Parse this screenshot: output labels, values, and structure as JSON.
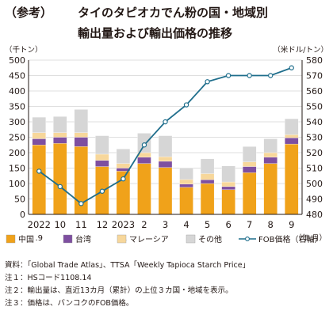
{
  "title": {
    "tag": "（参考）",
    "line1": "タイのタピオカでん粉の国・地域別",
    "line2": "輸出量および輸出価格の推移"
  },
  "notes": [
    "資料：「Global Trade Atlas」、TTSA「Weekly Tapioca Starch Price」",
    "注１：HSコード1108.14",
    "注２：輸出量は、直近13カ月（累計）の上位３カ国・地域を表示。",
    "注３：価格は、バンコクのFOB価格。"
  ],
  "colors": {
    "china": "#f0a21a",
    "taiwan": "#7e4fa0",
    "malaysia": "#f7d79b",
    "other": "#d6d6d6",
    "fob_line": "#1f6e8c",
    "axis": "#231815",
    "grid": "#bfbfbf"
  },
  "chart_data": {
    "type": "bar",
    "stacked": true,
    "y_left_unit": "（千トン）",
    "y_right_unit": "（米ドル/トン）",
    "x_unit": "（年.月）",
    "ylim": [
      0,
      500
    ],
    "y_ticks": [
      0,
      50,
      100,
      150,
      200,
      250,
      300,
      350,
      400,
      450,
      500
    ],
    "y2lim": [
      480,
      580
    ],
    "y2_ticks": [
      480,
      490,
      500,
      510,
      520,
      530,
      540,
      550,
      560,
      570,
      580
    ],
    "grid": true,
    "legend_position": "bottom",
    "categories": [
      "2022.9",
      "10",
      "11",
      "12",
      "2023.1",
      "2",
      "3",
      "4",
      "5",
      "6",
      "7",
      "8",
      "9"
    ],
    "category_labels": [
      [
        "2022",
        ".9"
      ],
      [
        "10"
      ],
      [
        "11"
      ],
      [
        "12"
      ],
      [
        "2023",
        ".1"
      ],
      [
        "2"
      ],
      [
        "3"
      ],
      [
        "4"
      ],
      [
        "5"
      ],
      [
        "6"
      ],
      [
        "7"
      ],
      [
        "8"
      ],
      [
        "9"
      ]
    ],
    "series": [
      {
        "name": "中国",
        "color_key": "china",
        "values": [
          225,
          230,
          220,
          155,
          140,
          165,
          152,
          88,
          100,
          80,
          135,
          165,
          228
        ]
      },
      {
        "name": "台湾",
        "color_key": "taiwan",
        "values": [
          20,
          20,
          30,
          20,
          10,
          20,
          20,
          10,
          12,
          10,
          20,
          20,
          20
        ]
      },
      {
        "name": "マレーシア",
        "color_key": "malaysia",
        "values": [
          20,
          15,
          15,
          20,
          15,
          15,
          15,
          15,
          20,
          15,
          15,
          15,
          10
        ]
      },
      {
        "name": "その他",
        "color_key": "other",
        "values": [
          50,
          52,
          75,
          60,
          47,
          63,
          68,
          37,
          48,
          52,
          50,
          45,
          52
        ]
      }
    ],
    "line_series": {
      "name": "FOB価格（右軸）",
      "axis": "right",
      "values": [
        508,
        498,
        487,
        495,
        503,
        525,
        540,
        551,
        566,
        570,
        570,
        570,
        575
      ]
    }
  }
}
